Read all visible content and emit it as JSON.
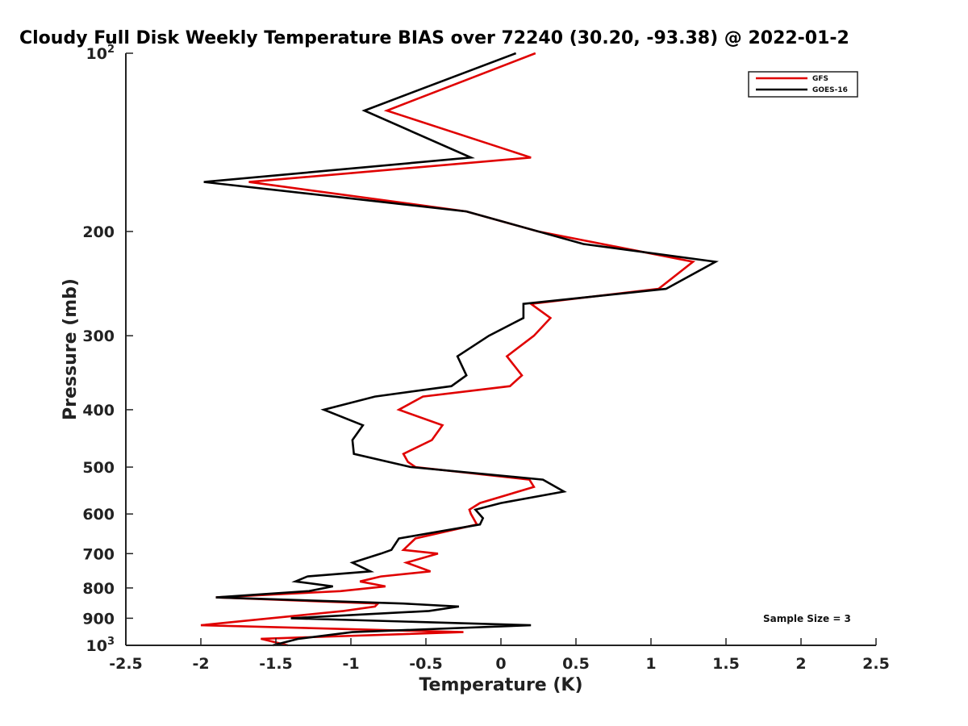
{
  "chart_data": {
    "type": "line",
    "title": "Cloudy Full Disk Weekly Temperature BIAS over 72240 (30.20, -93.38) @ 2022-01-2",
    "xlabel": "Temperature (K)",
    "ylabel": "Pressure (mb)",
    "xlim": [
      -2.5,
      2.5
    ],
    "ylim": [
      1000,
      100
    ],
    "yscale": "log",
    "x_ticks": [
      "-2.5",
      "-2",
      "-1.5",
      "-1",
      "-0.5",
      "0",
      "0.5",
      "1",
      "1.5",
      "2",
      "2.5"
    ],
    "x_tick_values": [
      -2.5,
      -2,
      -1.5,
      -1,
      -0.5,
      0,
      0.5,
      1,
      1.5,
      2,
      2.5
    ],
    "y_ticks": [
      {
        "value": 100,
        "base": "10",
        "exp": "2"
      },
      {
        "value": 200,
        "base": "200",
        "exp": ""
      },
      {
        "value": 300,
        "base": "300",
        "exp": ""
      },
      {
        "value": 400,
        "base": "400",
        "exp": ""
      },
      {
        "value": 500,
        "base": "500",
        "exp": ""
      },
      {
        "value": 600,
        "base": "600",
        "exp": ""
      },
      {
        "value": 700,
        "base": "700",
        "exp": ""
      },
      {
        "value": 800,
        "base": "800",
        "exp": ""
      },
      {
        "value": 900,
        "base": "900",
        "exp": ""
      },
      {
        "value": 1000,
        "base": "10",
        "exp": "3"
      }
    ],
    "legend_position": "top-right",
    "annotation": "Sample Size = 3",
    "series": [
      {
        "name": "GFS",
        "color": "#e00000",
        "points": [
          {
            "x": 0.23,
            "p": 100
          },
          {
            "x": -0.76,
            "p": 125
          },
          {
            "x": 0.2,
            "p": 150
          },
          {
            "x": -1.68,
            "p": 165
          },
          {
            "x": -0.23,
            "p": 185
          },
          {
            "x": 0.25,
            "p": 200
          },
          {
            "x": 1.28,
            "p": 225
          },
          {
            "x": 1.05,
            "p": 250
          },
          {
            "x": 0.2,
            "p": 265
          },
          {
            "x": 0.33,
            "p": 280
          },
          {
            "x": 0.22,
            "p": 300
          },
          {
            "x": 0.04,
            "p": 325
          },
          {
            "x": 0.14,
            "p": 350
          },
          {
            "x": 0.06,
            "p": 365
          },
          {
            "x": -0.52,
            "p": 380
          },
          {
            "x": -0.68,
            "p": 400
          },
          {
            "x": -0.39,
            "p": 425
          },
          {
            "x": -0.46,
            "p": 450
          },
          {
            "x": -0.65,
            "p": 475
          },
          {
            "x": -0.62,
            "p": 490
          },
          {
            "x": -0.57,
            "p": 500
          },
          {
            "x": 0.19,
            "p": 525
          },
          {
            "x": 0.22,
            "p": 540
          },
          {
            "x": -0.14,
            "p": 575
          },
          {
            "x": -0.21,
            "p": 590
          },
          {
            "x": -0.2,
            "p": 600
          },
          {
            "x": -0.16,
            "p": 625
          },
          {
            "x": -0.57,
            "p": 660
          },
          {
            "x": -0.65,
            "p": 690
          },
          {
            "x": -0.42,
            "p": 700
          },
          {
            "x": -0.63,
            "p": 725
          },
          {
            "x": -0.47,
            "p": 750
          },
          {
            "x": -0.8,
            "p": 765
          },
          {
            "x": -0.94,
            "p": 780
          },
          {
            "x": -0.77,
            "p": 795
          },
          {
            "x": -1.07,
            "p": 810
          },
          {
            "x": -1.9,
            "p": 830
          },
          {
            "x": -0.82,
            "p": 850
          },
          {
            "x": -0.84,
            "p": 860
          },
          {
            "x": -1.05,
            "p": 875
          },
          {
            "x": -2.0,
            "p": 925
          },
          {
            "x": -0.25,
            "p": 950
          },
          {
            "x": -1.6,
            "p": 975
          },
          {
            "x": -1.42,
            "p": 1000
          }
        ]
      },
      {
        "name": "GOES-16",
        "color": "#000000",
        "points": [
          {
            "x": 0.1,
            "p": 100
          },
          {
            "x": -0.91,
            "p": 125
          },
          {
            "x": -0.2,
            "p": 150
          },
          {
            "x": -1.98,
            "p": 165
          },
          {
            "x": -0.23,
            "p": 185
          },
          {
            "x": 0.55,
            "p": 210
          },
          {
            "x": 1.43,
            "p": 225
          },
          {
            "x": 1.1,
            "p": 250
          },
          {
            "x": 0.15,
            "p": 265
          },
          {
            "x": 0.15,
            "p": 280
          },
          {
            "x": -0.08,
            "p": 300
          },
          {
            "x": -0.29,
            "p": 325
          },
          {
            "x": -0.23,
            "p": 350
          },
          {
            "x": -0.33,
            "p": 365
          },
          {
            "x": -0.84,
            "p": 380
          },
          {
            "x": -1.18,
            "p": 400
          },
          {
            "x": -0.92,
            "p": 425
          },
          {
            "x": -0.99,
            "p": 450
          },
          {
            "x": -0.98,
            "p": 475
          },
          {
            "x": -0.6,
            "p": 500
          },
          {
            "x": 0.28,
            "p": 525
          },
          {
            "x": 0.42,
            "p": 550
          },
          {
            "x": 0.0,
            "p": 575
          },
          {
            "x": -0.17,
            "p": 590
          },
          {
            "x": -0.12,
            "p": 610
          },
          {
            "x": -0.14,
            "p": 625
          },
          {
            "x": -0.68,
            "p": 660
          },
          {
            "x": -0.73,
            "p": 690
          },
          {
            "x": -0.8,
            "p": 700
          },
          {
            "x": -0.99,
            "p": 725
          },
          {
            "x": -0.87,
            "p": 750
          },
          {
            "x": -1.29,
            "p": 765
          },
          {
            "x": -1.37,
            "p": 780
          },
          {
            "x": -1.12,
            "p": 795
          },
          {
            "x": -1.28,
            "p": 810
          },
          {
            "x": -1.9,
            "p": 830
          },
          {
            "x": -0.65,
            "p": 850
          },
          {
            "x": -0.28,
            "p": 860
          },
          {
            "x": -0.48,
            "p": 875
          },
          {
            "x": -1.4,
            "p": 900
          },
          {
            "x": 0.2,
            "p": 925
          },
          {
            "x": -0.99,
            "p": 950
          },
          {
            "x": -1.35,
            "p": 975
          },
          {
            "x": -1.52,
            "p": 1000
          }
        ]
      }
    ]
  }
}
